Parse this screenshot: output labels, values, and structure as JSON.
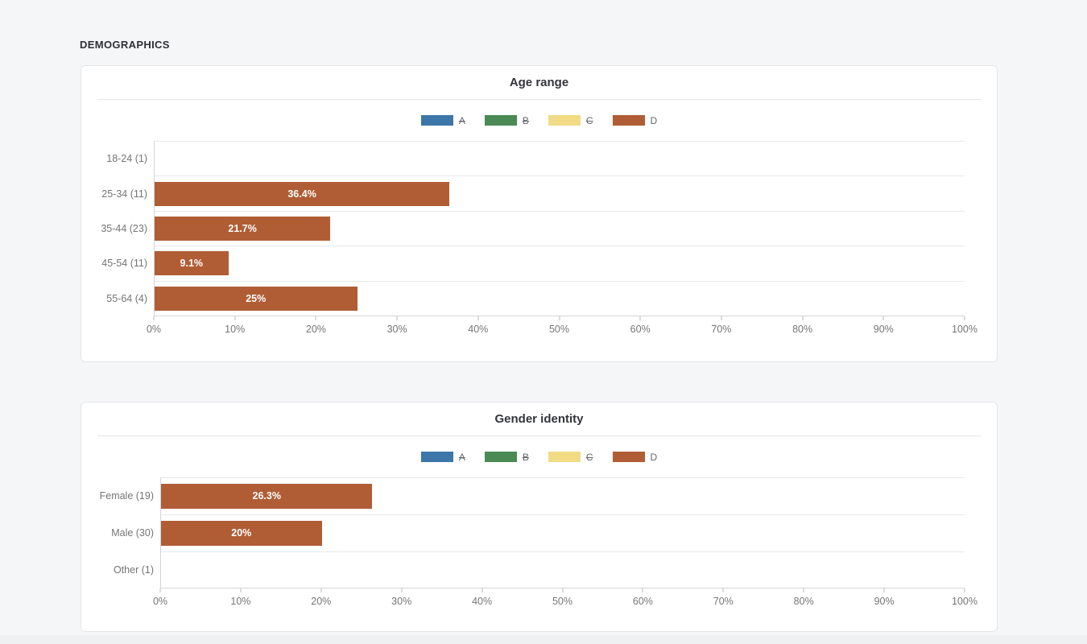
{
  "page": {
    "section_title": "DEMOGRAPHICS",
    "background_color": "#f5f6f7"
  },
  "legend": {
    "items": [
      {
        "label": "A",
        "color": "#3d76a8",
        "hidden": true
      },
      {
        "label": "B",
        "color": "#4a8a54",
        "hidden": true
      },
      {
        "label": "C",
        "color": "#f1dc85",
        "hidden": true
      },
      {
        "label": "D",
        "color": "#b05d35",
        "hidden": false
      }
    ]
  },
  "chart_data": [
    {
      "type": "bar",
      "orientation": "horizontal",
      "title": "Age range",
      "legend_position": "top",
      "grid": "row-lines",
      "categories": [
        "18-24 (1)",
        "25-34 (11)",
        "35-44 (23)",
        "45-54 (11)",
        "55-64 (4)"
      ],
      "series": [
        {
          "name": "A",
          "hidden": true
        },
        {
          "name": "B",
          "hidden": true
        },
        {
          "name": "C",
          "hidden": true
        },
        {
          "name": "D",
          "hidden": false,
          "color": "#b05d35",
          "values": [
            0,
            36.4,
            21.7,
            9.1,
            25
          ],
          "labels": [
            "",
            "36.4%",
            "21.7%",
            "9.1%",
            "25%"
          ]
        }
      ],
      "xlim": [
        0,
        100
      ],
      "x_ticks": [
        "0%",
        "10%",
        "20%",
        "30%",
        "40%",
        "50%",
        "60%",
        "70%",
        "80%",
        "90%",
        "100%"
      ]
    },
    {
      "type": "bar",
      "orientation": "horizontal",
      "title": "Gender identity",
      "legend_position": "top",
      "grid": "row-lines",
      "categories": [
        "Female (19)",
        "Male (30)",
        "Other (1)"
      ],
      "series": [
        {
          "name": "A",
          "hidden": true
        },
        {
          "name": "B",
          "hidden": true
        },
        {
          "name": "C",
          "hidden": true
        },
        {
          "name": "D",
          "hidden": false,
          "color": "#b05d35",
          "values": [
            26.3,
            20,
            0
          ],
          "labels": [
            "26.3%",
            "20%",
            ""
          ]
        }
      ],
      "xlim": [
        0,
        100
      ],
      "x_ticks": [
        "0%",
        "10%",
        "20%",
        "30%",
        "40%",
        "50%",
        "60%",
        "70%",
        "80%",
        "90%",
        "100%"
      ]
    }
  ]
}
